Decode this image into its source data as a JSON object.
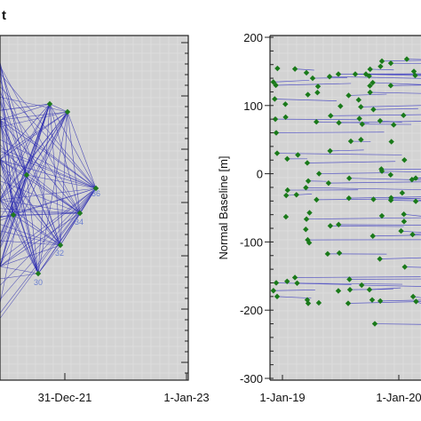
{
  "chart_data": [
    {
      "type": "network",
      "title": "t",
      "x_tick_labels": [
        "31-Dec-21",
        "1-Jan-23"
      ],
      "node_labels": [
        "36",
        "34",
        "32",
        "30"
      ],
      "colors": {
        "background": "#d3d3d3",
        "edge": "#2c2cb0",
        "node": "#1f7a1f",
        "label": "#6a7fd0"
      }
    },
    {
      "type": "scatter",
      "ylabel": "Normal Baseline [m]",
      "x_tick_labels": [
        "1-Jan-19",
        "1-Jan-20"
      ],
      "ylim": [
        -300,
        200
      ],
      "y_ticks": [
        200,
        100,
        0,
        -100,
        -200,
        -300
      ],
      "colors": {
        "background": "#d3d3d3",
        "edge": "#3030c0",
        "marker": "#1a7a1a"
      },
      "marker": "diamond"
    }
  ]
}
